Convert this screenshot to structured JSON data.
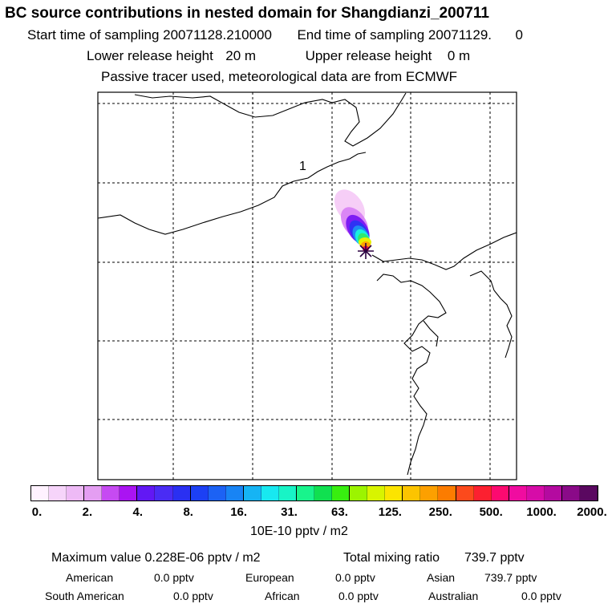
{
  "header": {
    "title": "BC  source contributions in nested domain for Shangdianzi_200711",
    "start_label": "Start time of sampling",
    "start_value": "20071128.210000",
    "end_label": "End time of sampling",
    "end_value": "20071129.",
    "end_value_tail": "0",
    "lower_label": "Lower release height",
    "lower_value": "20 m",
    "upper_label": "Upper release height",
    "upper_value": "0 m",
    "note": "Passive tracer used, meteorological data are from ECMWF"
  },
  "map": {
    "region_label": "1",
    "receptor_marker": "receptor-star-icon",
    "plume_colors": [
      "#f4c6f6",
      "#d77ef4",
      "#7d1cf4",
      "#2f32f4",
      "#1f8af4",
      "#18f0e0",
      "#2fe870",
      "#e8f000",
      "#ffa400",
      "#f41040"
    ]
  },
  "colorbar": {
    "colors": [
      "#fff2ff",
      "#f6d4fa",
      "#eebaf6",
      "#e49ef2",
      "#c64af2",
      "#aa14f2",
      "#6218f4",
      "#4a2cf4",
      "#2a30f2",
      "#1c40f4",
      "#1c62f4",
      "#1884f4",
      "#16b4f4",
      "#18e8f0",
      "#18f4c6",
      "#18f48c",
      "#10e050",
      "#38ee10",
      "#9cf400",
      "#d8f400",
      "#fce400",
      "#fcc400",
      "#fca000",
      "#fc7c00",
      "#fc4a1c",
      "#fc2030",
      "#fc0a70",
      "#f00ca0",
      "#d60ca8",
      "#b40aa0",
      "#8a0a88",
      "#5a0860"
    ],
    "ticks": [
      "0.",
      "2.",
      "4.",
      "8.",
      "16.",
      "31.",
      "63.",
      "125.",
      "250.",
      "500.",
      "1000.",
      "2000."
    ],
    "units": "10E-10 pptv / m2"
  },
  "stats": {
    "max_label": "Maximum value",
    "max_value": "0.228E-06 pptv / m2",
    "total_label": "Total mixing ratio",
    "total_value": "739.7 pptv",
    "american_label": "American",
    "american_value": "0.0 pptv",
    "european_label": "European",
    "european_value": "0.0 pptv",
    "asian_label": "Asian",
    "asian_value": "739.7 pptv",
    "south_american_label": "South American",
    "south_american_value": "0.0 pptv",
    "african_label": "African",
    "african_value": "0.0 pptv",
    "australian_label": "Australian",
    "australian_value": "0.0 pptv"
  }
}
